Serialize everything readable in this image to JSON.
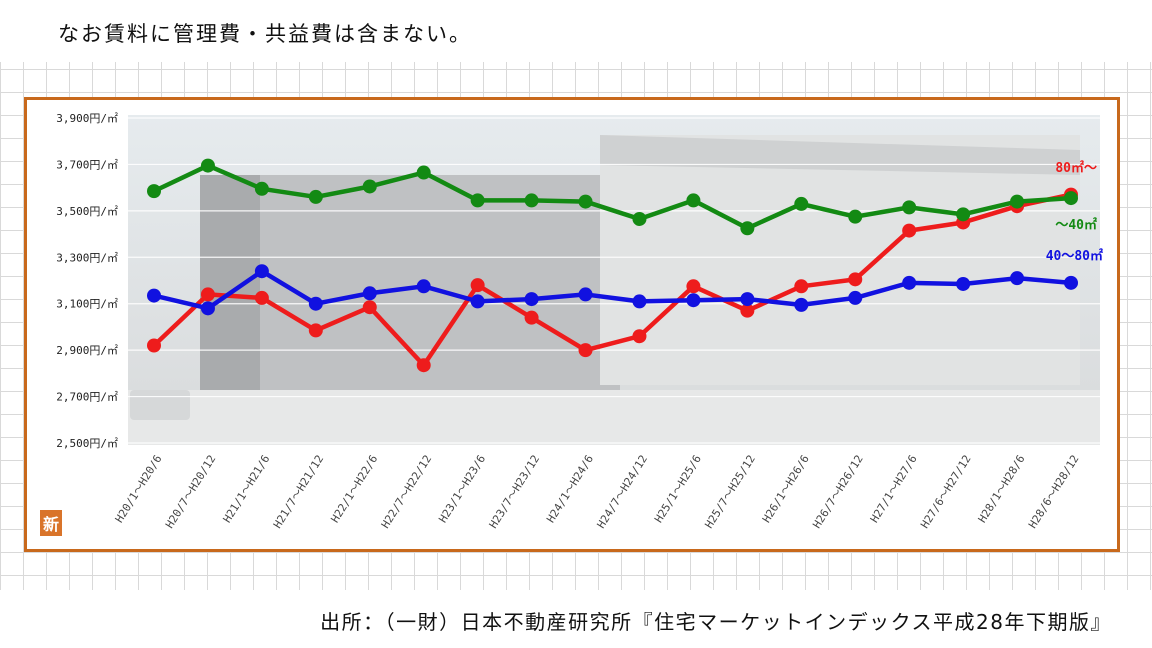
{
  "note": "なお賃料に管理費・共益費は含まない。",
  "source": "出所：（一財）日本不動産研究所『住宅マーケットインデックス平成28年下期版』",
  "badge": "新",
  "colors": {
    "frame": "#c8691c",
    "series_large": "#ee1c1c",
    "series_small": "#138a13",
    "series_mid": "#1111e0"
  },
  "chart_data": {
    "type": "line",
    "title": "",
    "xlabel": "",
    "ylabel": "",
    "ylim": [
      2500,
      3900
    ],
    "yticks": [
      "2,500円/㎡",
      "2,700円/㎡",
      "2,900円/㎡",
      "3,100円/㎡",
      "3,300円/㎡",
      "3,500円/㎡",
      "3,700円/㎡",
      "3,900円/㎡"
    ],
    "ytick_values": [
      2500,
      2700,
      2900,
      3100,
      3300,
      3500,
      3700,
      3900
    ],
    "grid": true,
    "categories": [
      "H20/1～H20/6",
      "H20/7～H20/12",
      "H21/1～H21/6",
      "H21/7～H21/12",
      "H22/1～H22/6",
      "H22/7～H22/12",
      "H23/1～H23/6",
      "H23/7～H23/12",
      "H24/1～H24/6",
      "H24/7～H24/12",
      "H25/1～H25/6",
      "H25/7～H25/12",
      "H26/1～H26/6",
      "H26/7～H26/12",
      "H27/1～H27/6",
      "H27/6～H27/12",
      "H28/1～H28/6",
      "H28/6～H28/12"
    ],
    "series": [
      {
        "name": "80㎡～",
        "key": "large",
        "values": [
          2920,
          3140,
          3125,
          2985,
          3085,
          2835,
          3180,
          3040,
          2900,
          2960,
          3175,
          3070,
          3175,
          3205,
          3415,
          3450,
          3520,
          3570
        ]
      },
      {
        "name": "～40㎡",
        "key": "small",
        "values": [
          3585,
          3695,
          3595,
          3560,
          3605,
          3665,
          3545,
          3545,
          3540,
          3465,
          3545,
          3425,
          3530,
          3475,
          3515,
          3485,
          3540,
          3555
        ]
      },
      {
        "name": "40～80㎡",
        "key": "mid",
        "values": [
          3135,
          3080,
          3240,
          3100,
          3145,
          3175,
          3110,
          3120,
          3140,
          3110,
          3115,
          3120,
          3095,
          3125,
          3190,
          3185,
          3210,
          3190
        ]
      }
    ]
  }
}
